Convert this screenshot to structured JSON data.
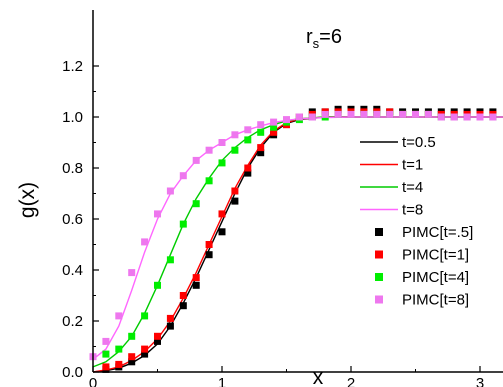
{
  "chart_data": {
    "type": "scatter",
    "title": "",
    "annotation": {
      "main": "r",
      "sub": "s",
      "suffix": "=6"
    },
    "xlabel": "x",
    "ylabel": "g(x)",
    "xlim": [
      0,
      3.2
    ],
    "ylim": [
      0,
      1.3
    ],
    "xticks": [
      0,
      1,
      2,
      3
    ],
    "yticks": [
      0.0,
      0.2,
      0.4,
      0.6,
      0.8,
      1.0,
      1.2
    ],
    "xtick_labels": [
      "0",
      "1",
      "2",
      "3"
    ],
    "ytick_labels": [
      "0.0",
      "0.2",
      "0.4",
      "0.6",
      "0.8",
      "1.0",
      "1.2"
    ],
    "grid": false,
    "legend_position": "right",
    "series": [
      {
        "name": "t=0.5",
        "kind": "line",
        "color": "#000000",
        "x": [
          0,
          0.1,
          0.2,
          0.3,
          0.4,
          0.5,
          0.6,
          0.7,
          0.8,
          0.9,
          1.0,
          1.1,
          1.2,
          1.3,
          1.4,
          1.5,
          1.6,
          1.8,
          2.0,
          2.2,
          2.4,
          2.6,
          2.8,
          3.0,
          3.2
        ],
        "y": [
          0.0,
          0.005,
          0.015,
          0.035,
          0.065,
          0.11,
          0.18,
          0.27,
          0.37,
          0.48,
          0.59,
          0.7,
          0.8,
          0.88,
          0.94,
          0.975,
          0.99,
          1.0,
          1.0,
          1.0,
          1.0,
          1.0,
          1.0,
          1.0,
          1.0
        ]
      },
      {
        "name": "t=1",
        "kind": "line",
        "color": "#ff0000",
        "x": [
          0,
          0.1,
          0.2,
          0.3,
          0.4,
          0.5,
          0.6,
          0.7,
          0.8,
          0.9,
          1.0,
          1.1,
          1.2,
          1.3,
          1.4,
          1.5,
          1.6,
          1.8,
          2.0,
          2.2,
          2.4,
          2.6,
          2.8,
          3.0,
          3.2
        ],
        "y": [
          0.0,
          0.008,
          0.02,
          0.045,
          0.08,
          0.13,
          0.2,
          0.29,
          0.39,
          0.5,
          0.61,
          0.72,
          0.81,
          0.89,
          0.945,
          0.978,
          0.992,
          1.0,
          1.0,
          1.0,
          1.0,
          1.0,
          1.0,
          1.0,
          1.0
        ]
      },
      {
        "name": "t=4",
        "kind": "line",
        "color": "#00cc00",
        "x": [
          0,
          0.1,
          0.2,
          0.3,
          0.4,
          0.5,
          0.6,
          0.7,
          0.8,
          0.9,
          1.0,
          1.1,
          1.2,
          1.3,
          1.4,
          1.5,
          1.6,
          1.8,
          2.0,
          2.2,
          2.4,
          2.6,
          2.8,
          3.0,
          3.2
        ],
        "y": [
          0.02,
          0.04,
          0.08,
          0.14,
          0.23,
          0.34,
          0.46,
          0.58,
          0.68,
          0.76,
          0.83,
          0.88,
          0.92,
          0.95,
          0.97,
          0.985,
          0.993,
          1.0,
          1.0,
          1.0,
          1.0,
          1.0,
          1.0,
          1.0,
          1.0
        ]
      },
      {
        "name": "t=8",
        "kind": "line",
        "color": "#ff66ff",
        "x": [
          0,
          0.1,
          0.2,
          0.3,
          0.4,
          0.5,
          0.6,
          0.7,
          0.8,
          0.9,
          1.0,
          1.1,
          1.2,
          1.3,
          1.4,
          1.5,
          1.6,
          1.8,
          2.0,
          2.2,
          2.4,
          2.6,
          2.8,
          3.0,
          3.2
        ],
        "y": [
          0.05,
          0.09,
          0.18,
          0.32,
          0.47,
          0.6,
          0.7,
          0.77,
          0.83,
          0.87,
          0.9,
          0.93,
          0.95,
          0.965,
          0.978,
          0.987,
          0.993,
          0.998,
          1.0,
          1.0,
          1.0,
          1.0,
          1.0,
          1.0,
          1.0
        ]
      },
      {
        "name": "PIMC[t=.5]",
        "kind": "points",
        "color": "#000000",
        "x": [
          0.1,
          0.2,
          0.3,
          0.4,
          0.5,
          0.6,
          0.7,
          0.8,
          0.9,
          1.0,
          1.1,
          1.2,
          1.3,
          1.4,
          1.5,
          1.6,
          1.7,
          1.8,
          1.9,
          2.0,
          2.1,
          2.2,
          2.3,
          2.4,
          2.5,
          2.6,
          2.7,
          2.8,
          2.9,
          3.0,
          3.1,
          3.2
        ],
        "y": [
          0.01,
          0.02,
          0.04,
          0.07,
          0.12,
          0.18,
          0.26,
          0.34,
          0.46,
          0.55,
          0.67,
          0.78,
          0.86,
          0.93,
          0.98,
          1.0,
          1.02,
          1.02,
          1.03,
          1.03,
          1.03,
          1.03,
          1.02,
          1.02,
          1.02,
          1.02,
          1.02,
          1.02,
          1.02,
          1.02,
          1.02,
          1.02
        ]
      },
      {
        "name": "PIMC[t=1]",
        "kind": "points",
        "color": "#ff0000",
        "x": [
          0.1,
          0.2,
          0.3,
          0.4,
          0.5,
          0.6,
          0.7,
          0.8,
          0.9,
          1.0,
          1.1,
          1.2,
          1.3,
          1.4,
          1.5,
          1.6,
          1.7,
          1.8,
          1.9,
          2.0,
          2.1,
          2.2,
          2.3,
          2.4,
          2.5,
          2.6,
          2.7,
          2.8,
          2.9,
          3.0,
          3.1,
          3.2
        ],
        "y": [
          0.02,
          0.03,
          0.06,
          0.09,
          0.14,
          0.21,
          0.3,
          0.37,
          0.5,
          0.62,
          0.71,
          0.8,
          0.88,
          0.94,
          0.97,
          1.0,
          1.01,
          1.02,
          1.02,
          1.02,
          1.02,
          1.02,
          1.02,
          1.01,
          1.01,
          1.01,
          1.01,
          1.01,
          1.01,
          1.01,
          1.01,
          1.01
        ]
      },
      {
        "name": "PIMC[t=4]",
        "kind": "points",
        "color": "#00ee00",
        "x": [
          0.1,
          0.2,
          0.3,
          0.4,
          0.5,
          0.6,
          0.7,
          0.8,
          0.9,
          1.0,
          1.1,
          1.2,
          1.3,
          1.4,
          1.5,
          1.6,
          1.7,
          1.8,
          1.9,
          2.0,
          2.1,
          2.2,
          2.3,
          2.4,
          2.5,
          2.6,
          2.7,
          2.8,
          2.9,
          3.0,
          3.1,
          3.2
        ],
        "y": [
          0.07,
          0.09,
          0.14,
          0.22,
          0.34,
          0.44,
          0.58,
          0.66,
          0.75,
          0.82,
          0.87,
          0.91,
          0.94,
          0.96,
          0.98,
          0.99,
          1.0,
          1.0,
          1.01,
          1.01,
          1.01,
          1.01,
          1.01,
          1.01,
          1.01,
          1.01,
          1.0,
          1.0,
          1.0,
          1.0,
          1.0,
          1.0
        ]
      },
      {
        "name": "PIMC[t=8]",
        "kind": "points",
        "color": "#ee77ee",
        "x": [
          0.0,
          0.1,
          0.2,
          0.3,
          0.4,
          0.5,
          0.6,
          0.7,
          0.8,
          0.9,
          1.0,
          1.1,
          1.2,
          1.3,
          1.4,
          1.5,
          1.6,
          1.7,
          1.8,
          1.9,
          2.0,
          2.1,
          2.2,
          2.3,
          2.4,
          2.5,
          2.6,
          2.7,
          2.8,
          2.9,
          3.0,
          3.1,
          3.2
        ],
        "y": [
          0.06,
          0.12,
          0.22,
          0.39,
          0.51,
          0.62,
          0.71,
          0.77,
          0.83,
          0.87,
          0.9,
          0.93,
          0.95,
          0.97,
          0.98,
          0.99,
          1.0,
          1.0,
          1.01,
          1.01,
          1.01,
          1.01,
          1.01,
          1.01,
          1.01,
          1.01,
          1.01,
          1.0,
          1.0,
          1.0,
          1.0,
          1.0,
          1.0
        ]
      }
    ]
  }
}
